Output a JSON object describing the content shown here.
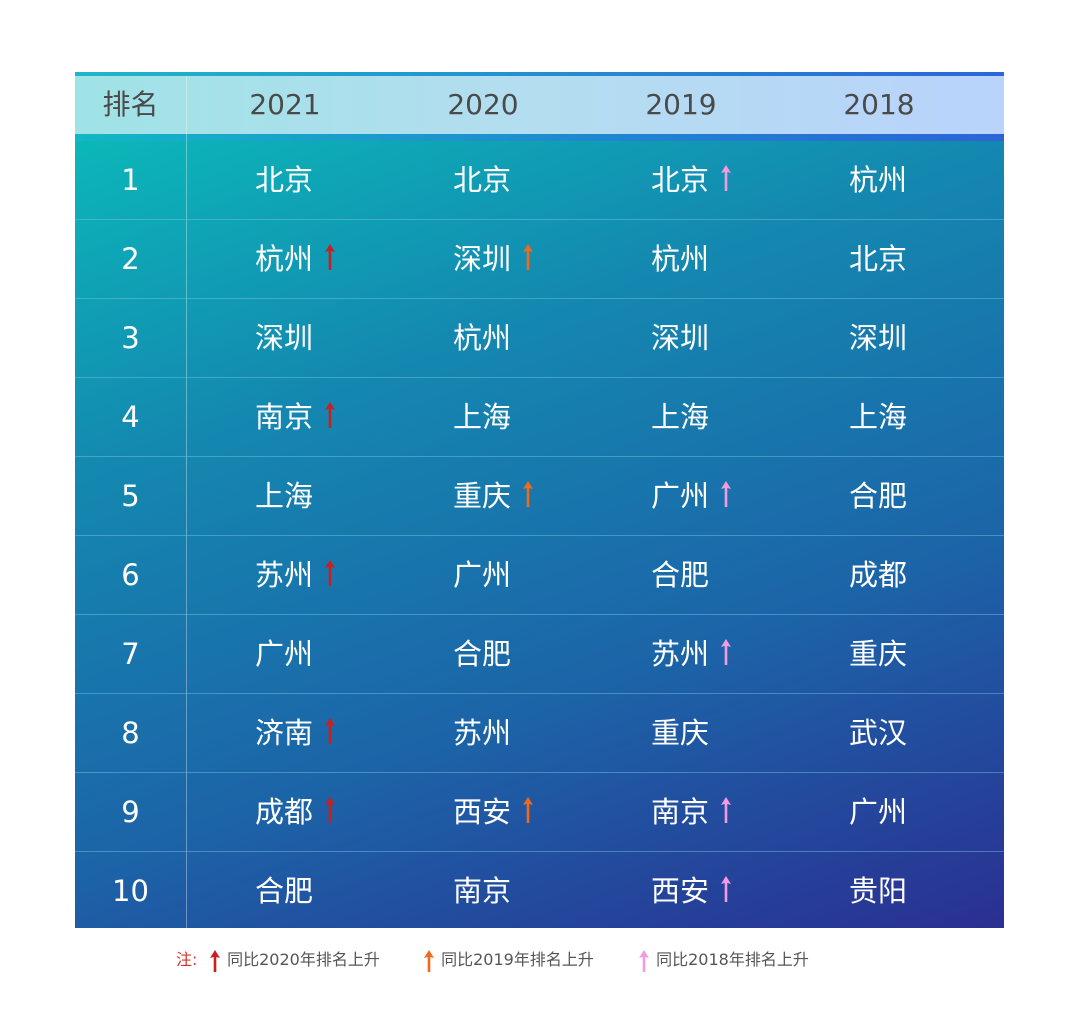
{
  "header": {
    "rank_label": "排名",
    "years": [
      "2021",
      "2020",
      "2019",
      "2018"
    ]
  },
  "arrow_colors": {
    "y2020": "#c8201e",
    "y2019": "#f06a1e",
    "y2018": "#f39be0"
  },
  "rows": [
    {
      "rank": "1",
      "cells": [
        {
          "city": "北京",
          "arrow": null
        },
        {
          "city": "北京",
          "arrow": null
        },
        {
          "city": "北京",
          "arrow": "y2018"
        },
        {
          "city": "杭州",
          "arrow": null
        }
      ]
    },
    {
      "rank": "2",
      "cells": [
        {
          "city": "杭州",
          "arrow": "y2020"
        },
        {
          "city": "深圳",
          "arrow": "y2019"
        },
        {
          "city": "杭州",
          "arrow": null
        },
        {
          "city": "北京",
          "arrow": null
        }
      ]
    },
    {
      "rank": "3",
      "cells": [
        {
          "city": "深圳",
          "arrow": null
        },
        {
          "city": "杭州",
          "arrow": null
        },
        {
          "city": "深圳",
          "arrow": null
        },
        {
          "city": "深圳",
          "arrow": null
        }
      ]
    },
    {
      "rank": "4",
      "cells": [
        {
          "city": "南京",
          "arrow": "y2020"
        },
        {
          "city": "上海",
          "arrow": null
        },
        {
          "city": "上海",
          "arrow": null
        },
        {
          "city": "上海",
          "arrow": null
        }
      ]
    },
    {
      "rank": "5",
      "cells": [
        {
          "city": "上海",
          "arrow": null
        },
        {
          "city": "重庆",
          "arrow": "y2019"
        },
        {
          "city": "广州",
          "arrow": "y2018"
        },
        {
          "city": "合肥",
          "arrow": null
        }
      ]
    },
    {
      "rank": "6",
      "cells": [
        {
          "city": "苏州",
          "arrow": "y2020"
        },
        {
          "city": "广州",
          "arrow": null
        },
        {
          "city": "合肥",
          "arrow": null
        },
        {
          "city": "成都",
          "arrow": null
        }
      ]
    },
    {
      "rank": "7",
      "cells": [
        {
          "city": "广州",
          "arrow": null
        },
        {
          "city": "合肥",
          "arrow": null
        },
        {
          "city": "苏州",
          "arrow": "y2018"
        },
        {
          "city": "重庆",
          "arrow": null
        }
      ]
    },
    {
      "rank": "8",
      "cells": [
        {
          "city": "济南",
          "arrow": "y2020"
        },
        {
          "city": "苏州",
          "arrow": null
        },
        {
          "city": "重庆",
          "arrow": null
        },
        {
          "city": "武汉",
          "arrow": null
        }
      ]
    },
    {
      "rank": "9",
      "cells": [
        {
          "city": "成都",
          "arrow": "y2020"
        },
        {
          "city": "西安",
          "arrow": "y2019"
        },
        {
          "city": "南京",
          "arrow": "y2018"
        },
        {
          "city": "广州",
          "arrow": null
        }
      ]
    },
    {
      "rank": "10",
      "cells": [
        {
          "city": "合肥",
          "arrow": null
        },
        {
          "city": "南京",
          "arrow": null
        },
        {
          "city": "西安",
          "arrow": "y2018"
        },
        {
          "city": "贵阳",
          "arrow": null
        }
      ]
    }
  ],
  "legend": {
    "note_label": "注:",
    "items": [
      {
        "arrow": "y2020",
        "text": "同比2020年排名上升"
      },
      {
        "arrow": "y2019",
        "text": "同比2019年排名上升"
      },
      {
        "arrow": "y2018",
        "text": "同比2018年排名上升"
      }
    ]
  }
}
